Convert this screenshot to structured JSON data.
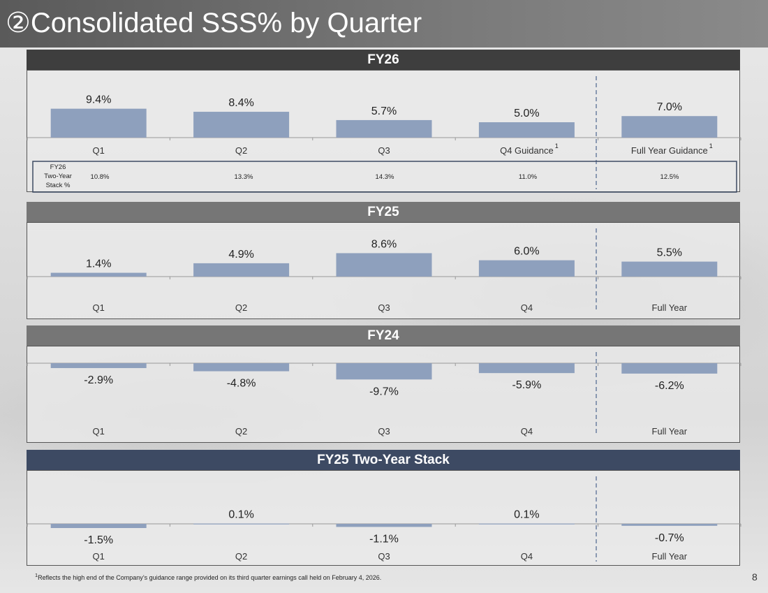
{
  "page": {
    "title": "②Consolidated SSS% by Quarter",
    "footnote_sup": "1",
    "footnote_text": "Reflects the high end of the Company’s guidance range provided on its third quarter earnings call held on February 4, 2026.",
    "page_number": "8"
  },
  "colors": {
    "bar": "#8ea0bd",
    "head_fy26": "#3e3e3e",
    "head_fy25": "#767676",
    "head_fy24": "#767676",
    "head_stack": "#3d4a63"
  },
  "chart_data": [
    {
      "type": "bar",
      "title": "FY26",
      "categories": [
        "Q1",
        "Q2",
        "Q3",
        "Q4 Guidance",
        "Full Year Guidance"
      ],
      "category_superscripts": [
        "",
        "",
        "",
        "1",
        "1"
      ],
      "values": [
        9.4,
        8.4,
        5.7,
        5.0,
        7.0
      ],
      "labels": [
        "9.4%",
        "8.4%",
        "5.7%",
        "5.0%",
        "7.0%"
      ],
      "ylim": [
        0,
        10
      ],
      "two_year_stack": {
        "row_label_lines": [
          "FY26",
          "Two-Year",
          "Stack %"
        ],
        "values": [
          "10.8%",
          "13.3%",
          "14.3%",
          "11.0%",
          "12.5%"
        ]
      }
    },
    {
      "type": "bar",
      "title": "FY25",
      "categories": [
        "Q1",
        "Q2",
        "Q3",
        "Q4",
        "Full Year"
      ],
      "values": [
        1.4,
        4.9,
        8.6,
        6.0,
        5.5
      ],
      "labels": [
        "1.4%",
        "4.9%",
        "8.6%",
        "6.0%",
        "5.5%"
      ],
      "ylim": [
        0,
        10
      ]
    },
    {
      "type": "bar",
      "title": "FY24",
      "categories": [
        "Q1",
        "Q2",
        "Q3",
        "Q4",
        "Full Year"
      ],
      "values": [
        -2.9,
        -4.8,
        -9.7,
        -5.9,
        -6.2
      ],
      "labels": [
        "-2.9%",
        "-4.8%",
        "-9.7%",
        "-5.9%",
        "-6.2%"
      ],
      "ylim": [
        -10,
        10
      ]
    },
    {
      "type": "bar",
      "title": "FY25 Two-Year Stack",
      "categories": [
        "Q1",
        "Q2",
        "Q3",
        "Q4",
        "Full Year"
      ],
      "values": [
        -1.5,
        0.1,
        -1.1,
        0.1,
        -0.7
      ],
      "labels": [
        "-1.5%",
        "0.1%",
        "-1.1%",
        "0.1%",
        "-0.7%"
      ],
      "ylim": [
        -10,
        10
      ]
    }
  ]
}
